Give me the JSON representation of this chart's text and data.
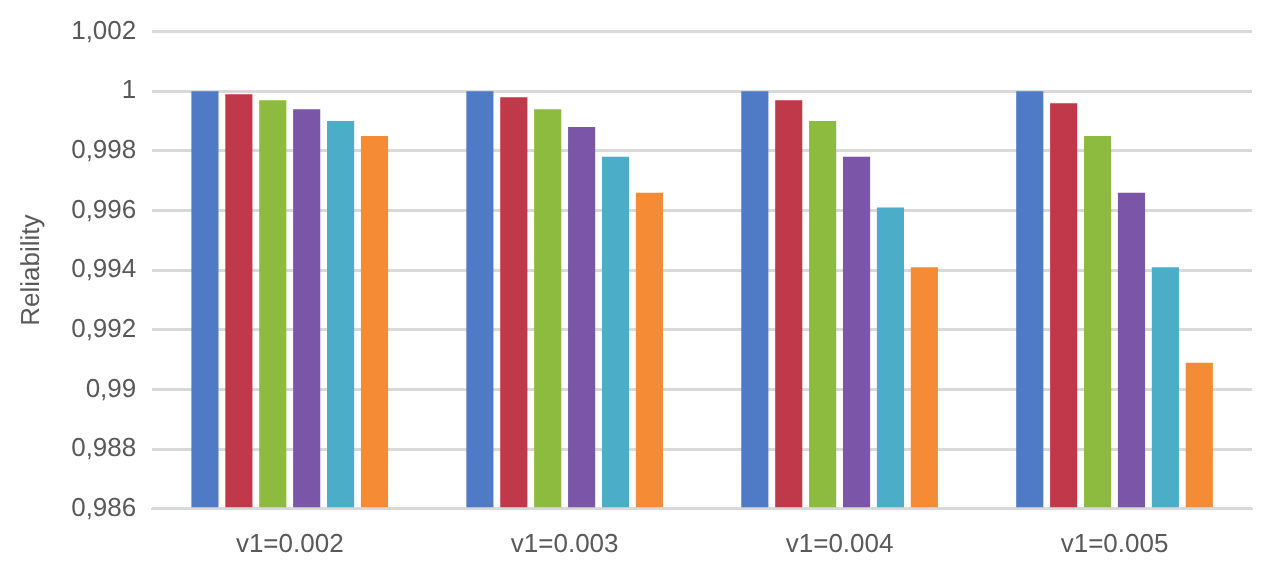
{
  "chart_data": {
    "type": "bar",
    "ylabel": "Reliability",
    "categories": [
      "v1=0.002",
      "v1=0.003",
      "v1=0.004",
      "v1=0.005"
    ],
    "series": [
      {
        "color": "#4f7ac6",
        "values": [
          1,
          1,
          1,
          1
        ]
      },
      {
        "color": "#c0394a",
        "values": [
          0.9999,
          0.9998,
          0.9997,
          0.9996
        ]
      },
      {
        "color": "#8dbb40",
        "values": [
          0.9997,
          0.9994,
          0.999,
          0.9985
        ]
      },
      {
        "color": "#7b55a8",
        "values": [
          0.9994,
          0.9988,
          0.9978,
          0.9966
        ]
      },
      {
        "color": "#4badc7",
        "values": [
          0.999,
          0.9978,
          0.9961,
          0.9941
        ]
      },
      {
        "color": "#f68b35",
        "values": [
          0.9985,
          0.9966,
          0.9941,
          0.9909
        ]
      }
    ],
    "ylim": [
      0.986,
      1.002
    ],
    "yticks": [
      {
        "value": 0.986,
        "label": "0,986"
      },
      {
        "value": 0.988,
        "label": "0,988"
      },
      {
        "value": 0.99,
        "label": "0,99"
      },
      {
        "value": 0.992,
        "label": "0,992"
      },
      {
        "value": 0.994,
        "label": "0,994"
      },
      {
        "value": 0.996,
        "label": "0,996"
      },
      {
        "value": 0.998,
        "label": "0,998"
      },
      {
        "value": 1,
        "label": "1"
      },
      {
        "value": 1.002,
        "label": "1,002"
      }
    ],
    "grid": "y",
    "legend": false
  }
}
